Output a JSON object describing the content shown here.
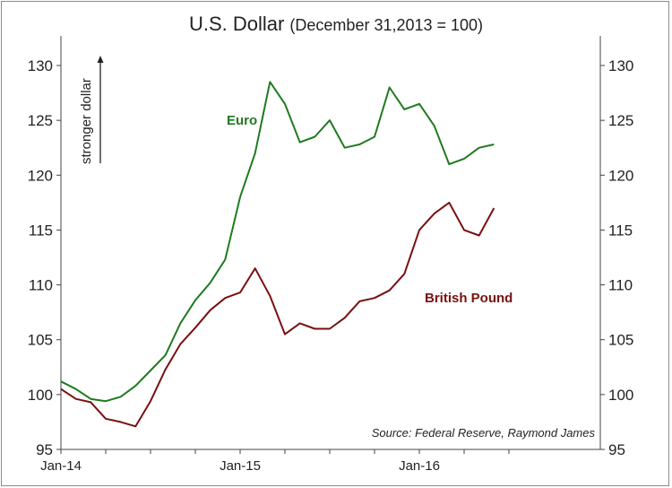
{
  "chart_data": {
    "type": "line",
    "title": "U.S. Dollar",
    "subtitle": "(December 31,2013 = 100)",
    "xlabel": "",
    "ylabel": "",
    "x_tick_labels": [
      "Jan-14",
      "Jan-15",
      "Jan-16"
    ],
    "y_ticks": [
      95,
      100,
      105,
      110,
      115,
      120,
      125,
      130
    ],
    "ylim": [
      95,
      132
    ],
    "secondary_y_axis": true,
    "grid": false,
    "annotation": "stronger dollar",
    "source": "Source: Federal Reserve, Raymond James",
    "x": [
      "2014-01",
      "2014-02",
      "2014-03",
      "2014-04",
      "2014-05",
      "2014-06",
      "2014-07",
      "2014-08",
      "2014-09",
      "2014-10",
      "2014-11",
      "2014-12",
      "2015-01",
      "2015-02",
      "2015-03",
      "2015-04",
      "2015-05",
      "2015-06",
      "2015-07",
      "2015-08",
      "2015-09",
      "2015-10",
      "2015-11",
      "2015-12",
      "2016-01",
      "2016-02",
      "2016-03",
      "2016-04",
      "2016-05",
      "2016-06"
    ],
    "series": [
      {
        "name": "Euro",
        "color": "#1f7a1f",
        "values": [
          101.2,
          100.5,
          99.6,
          99.4,
          99.8,
          100.8,
          102.2,
          103.6,
          106.5,
          108.6,
          110.2,
          112.3,
          118.0,
          122.0,
          128.5,
          126.5,
          123.0,
          123.5,
          125.0,
          122.5,
          122.8,
          123.5,
          128.0,
          126.0,
          126.5,
          124.5,
          121.0,
          121.5,
          122.5,
          122.8
        ]
      },
      {
        "name": "British Pound",
        "color": "#7a1010",
        "values": [
          100.5,
          99.6,
          99.3,
          97.8,
          97.5,
          97.1,
          99.4,
          102.3,
          104.6,
          106.1,
          107.7,
          108.8,
          109.3,
          111.5,
          109.0,
          105.5,
          106.5,
          106.0,
          106.0,
          107.0,
          108.5,
          108.8,
          109.5,
          111.0,
          115.0,
          116.5,
          117.5,
          115.0,
          114.5,
          117.0
        ]
      }
    ]
  }
}
